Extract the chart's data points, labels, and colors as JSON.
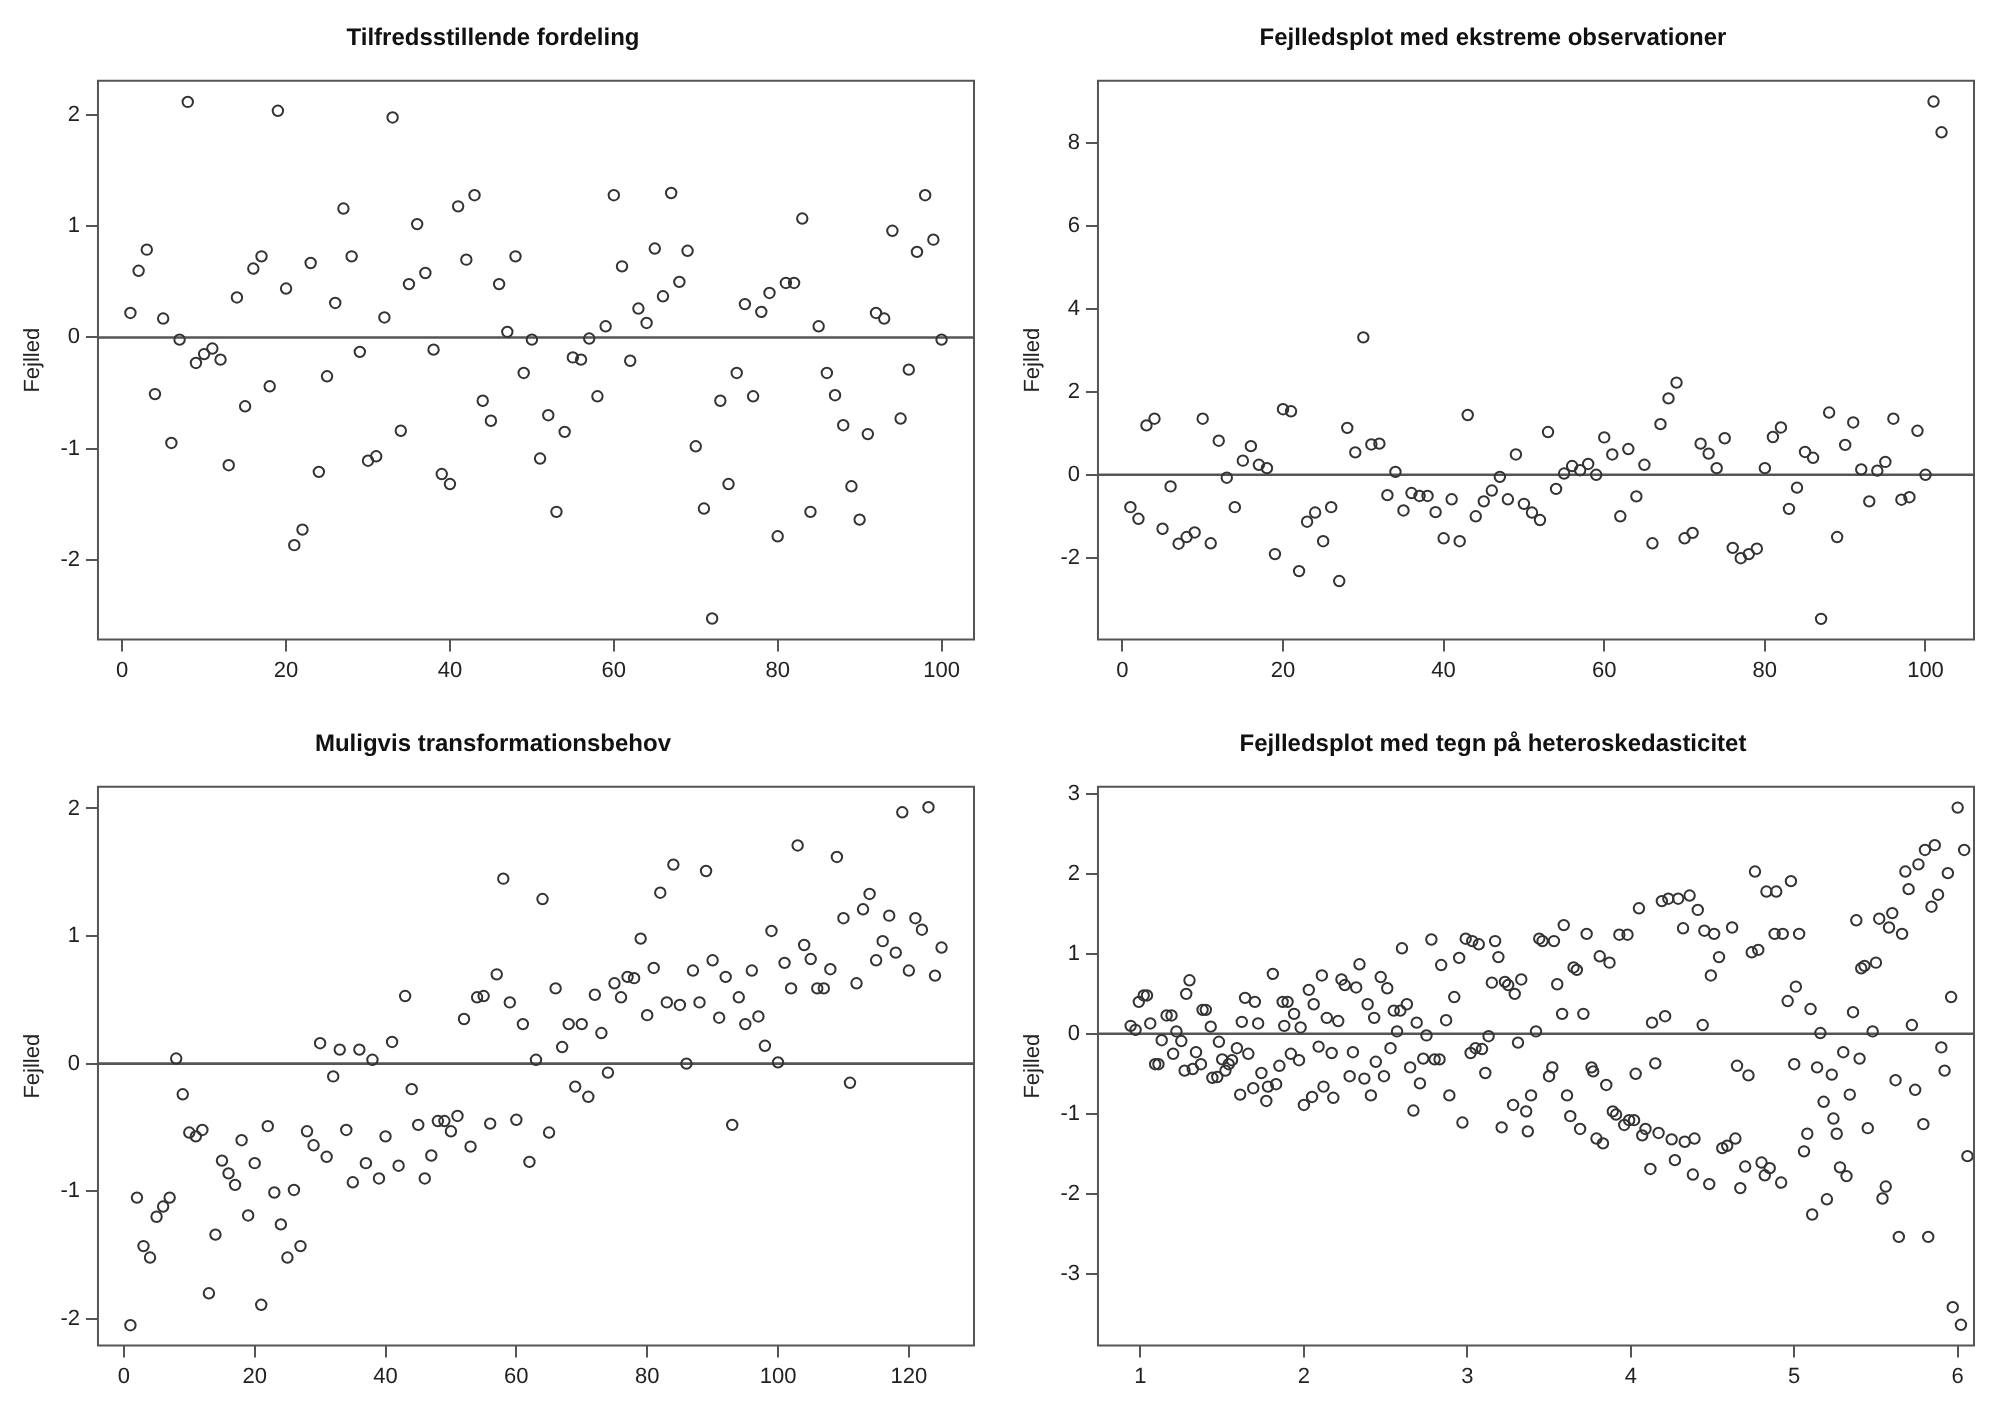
{
  "chart_data": [
    {
      "type": "scatter",
      "title": "Tilfredsstillende fordeling",
      "ylabel": "Fejlled",
      "marker": "circle",
      "x": [
        1,
        2,
        3,
        4,
        5,
        6,
        7,
        8,
        9,
        10,
        11,
        12,
        13,
        14,
        15,
        16,
        17,
        18,
        19,
        20,
        21,
        22,
        23,
        24,
        25,
        26,
        27,
        28,
        29,
        30,
        31,
        32,
        33,
        34,
        35,
        36,
        37,
        38,
        39,
        40,
        41,
        42,
        43,
        44,
        45,
        46,
        47,
        48,
        49,
        50,
        51,
        52,
        53,
        54,
        55,
        56,
        57,
        58,
        59,
        60,
        61,
        62,
        63,
        64,
        65,
        66,
        67,
        68,
        69,
        70,
        71,
        72,
        73,
        74,
        75,
        76,
        77,
        78,
        79,
        80,
        81,
        82,
        83,
        84,
        85,
        86,
        87,
        88,
        89,
        90,
        91,
        92,
        93,
        94,
        95,
        96,
        97,
        98,
        99,
        100
      ],
      "series": [
        {
          "color": "#333333",
          "values": [
            0.22,
            0.6,
            0.79,
            -0.51,
            0.17,
            -0.95,
            -0.02,
            2.12,
            -0.23,
            -0.15,
            -0.1,
            -0.2,
            -1.15,
            0.36,
            -0.62,
            0.62,
            0.73,
            -0.44,
            2.04,
            0.44,
            -1.87,
            -1.73,
            0.67,
            -1.21,
            -0.35,
            0.31,
            1.16,
            0.73,
            -0.13,
            -1.11,
            -1.07,
            0.18,
            1.98,
            -0.84,
            0.48,
            1.02,
            0.58,
            -0.11,
            -1.23,
            -1.32,
            1.18,
            0.7,
            1.28,
            -0.57,
            -0.75,
            0.48,
            0.05,
            0.73,
            -0.32,
            -0.02,
            -1.09,
            -0.7,
            -1.57,
            -0.85,
            -0.18,
            -0.2,
            -0.01,
            -0.53,
            0.1,
            1.28,
            0.64,
            -0.21,
            0.26,
            0.13,
            0.8,
            0.37,
            1.3,
            0.5,
            0.78,
            -0.98,
            -1.54,
            -2.53,
            -0.57,
            -1.32,
            -0.32,
            0.3,
            -0.53,
            0.23,
            0.4,
            -1.79,
            0.49,
            0.49,
            1.07,
            -1.57,
            0.1,
            -0.32,
            -0.52,
            -0.79,
            -1.34,
            -1.64,
            -0.87,
            0.22,
            0.17,
            0.96,
            -0.73,
            -0.29,
            0.77,
            1.28,
            0.88,
            -0.02
          ]
        }
      ],
      "xlim": [
        -2.96,
        103.96
      ],
      "ylim": [
        -2.72,
        2.31
      ],
      "xticks": [
        0,
        20,
        40,
        60,
        80,
        100
      ],
      "yticks": [
        -2,
        -1,
        0,
        1,
        2
      ],
      "ref_lines": [
        {
          "axis": "y",
          "value": 0,
          "color": "#555555"
        }
      ]
    },
    {
      "type": "scatter",
      "title": "Fejlledsplot med ekstreme observationer",
      "ylabel": "Fejlled",
      "marker": "circle",
      "x": [
        1,
        2,
        3,
        4,
        5,
        6,
        7,
        8,
        9,
        10,
        11,
        12,
        13,
        14,
        15,
        16,
        17,
        18,
        19,
        20,
        21,
        22,
        23,
        24,
        25,
        26,
        27,
        28,
        29,
        30,
        31,
        32,
        33,
        34,
        35,
        36,
        37,
        38,
        39,
        40,
        41,
        42,
        43,
        44,
        45,
        46,
        47,
        48,
        49,
        50,
        51,
        52,
        53,
        54,
        55,
        56,
        57,
        58,
        59,
        60,
        61,
        62,
        63,
        64,
        65,
        66,
        67,
        68,
        69,
        70,
        71,
        72,
        73,
        74,
        75,
        76,
        77,
        78,
        79,
        80,
        81,
        82,
        83,
        84,
        85,
        86,
        87,
        88,
        89,
        90,
        91,
        92,
        93,
        94,
        95,
        96,
        97,
        98,
        99,
        100,
        101,
        102
      ],
      "series": [
        {
          "color": "#333333",
          "values": [
            -0.78,
            -1.06,
            1.19,
            1.35,
            -1.3,
            -0.28,
            -1.66,
            -1.5,
            -1.39,
            1.35,
            -1.65,
            0.82,
            -0.07,
            -0.78,
            0.34,
            0.69,
            0.24,
            0.16,
            -1.91,
            1.58,
            1.53,
            -2.32,
            -1.13,
            -0.91,
            -1.6,
            -0.78,
            -2.56,
            1.13,
            0.54,
            3.31,
            0.73,
            0.75,
            -0.49,
            0.07,
            -0.86,
            -0.44,
            -0.51,
            -0.51,
            -0.9,
            -1.53,
            -0.59,
            -1.6,
            1.44,
            -1.0,
            -0.64,
            -0.38,
            -0.05,
            -0.59,
            0.49,
            -0.7,
            -0.91,
            -1.09,
            1.03,
            -0.34,
            0.03,
            0.21,
            0.11,
            0.26,
            0.0,
            0.9,
            0.49,
            -1.0,
            0.62,
            -0.52,
            0.24,
            -1.65,
            1.22,
            1.84,
            2.22,
            -1.53,
            -1.4,
            0.75,
            0.51,
            0.16,
            0.88,
            -1.76,
            -2.01,
            -1.91,
            -1.78,
            0.16,
            0.91,
            1.14,
            -0.82,
            -0.31,
            0.55,
            0.41,
            -3.47,
            1.5,
            -1.5,
            0.72,
            1.26,
            0.13,
            -0.64,
            0.1,
            0.31,
            1.35,
            -0.6,
            -0.54,
            1.06,
            0.0,
            8.99,
            8.25
          ]
        }
      ],
      "xlim": [
        -3.04,
        106.04
      ],
      "ylim": [
        -3.97,
        9.49
      ],
      "xticks": [
        0,
        20,
        40,
        60,
        80,
        100
      ],
      "yticks": [
        -2,
        0,
        2,
        4,
        6,
        8
      ],
      "ref_lines": [
        {
          "axis": "y",
          "value": 0,
          "color": "#555555"
        }
      ]
    },
    {
      "type": "scatter",
      "title": "Muligvis transformationsbehov",
      "ylabel": "Fejlled",
      "marker": "circle",
      "x": [
        1,
        2,
        3,
        4,
        5,
        6,
        7,
        8,
        9,
        10,
        11,
        12,
        13,
        14,
        15,
        16,
        17,
        18,
        19,
        20,
        21,
        22,
        23,
        24,
        25,
        26,
        27,
        28,
        29,
        30,
        31,
        32,
        33,
        34,
        35,
        36,
        37,
        38,
        39,
        40,
        41,
        42,
        43,
        44,
        45,
        46,
        47,
        48,
        49,
        50,
        51,
        52,
        53,
        54,
        55,
        56,
        57,
        58,
        59,
        60,
        61,
        62,
        63,
        64,
        65,
        66,
        67,
        68,
        69,
        70,
        71,
        72,
        73,
        74,
        75,
        76,
        77,
        78,
        79,
        80,
        81,
        82,
        83,
        84,
        85,
        86,
        87,
        88,
        89,
        90,
        91,
        92,
        93,
        94,
        95,
        96,
        97,
        98,
        99,
        100,
        101,
        102,
        103,
        104,
        105,
        106,
        107,
        108,
        109,
        110,
        111,
        112,
        113,
        114,
        115,
        116,
        117,
        118,
        119,
        120,
        121,
        122,
        123,
        124,
        125
      ],
      "series": [
        {
          "color": "#333333",
          "values": [
            -2.05,
            -1.05,
            -1.43,
            -1.52,
            -1.2,
            -1.12,
            -1.05,
            0.04,
            -0.24,
            -0.54,
            -0.57,
            -0.52,
            -1.8,
            -1.34,
            -0.76,
            -0.86,
            -0.95,
            -0.6,
            -1.19,
            -0.78,
            -1.89,
            -0.49,
            -1.01,
            -1.26,
            -1.52,
            -0.99,
            -1.43,
            -0.53,
            -0.64,
            0.16,
            -0.73,
            -0.1,
            0.11,
            -0.52,
            -0.93,
            0.11,
            -0.78,
            0.03,
            -0.9,
            -0.57,
            0.17,
            -0.8,
            0.53,
            -0.2,
            -0.48,
            -0.9,
            -0.72,
            -0.45,
            -0.45,
            -0.53,
            -0.41,
            0.35,
            -0.65,
            0.52,
            0.53,
            -0.47,
            0.7,
            1.45,
            0.48,
            -0.44,
            0.31,
            -0.77,
            0.03,
            1.29,
            -0.54,
            0.59,
            0.13,
            0.31,
            -0.18,
            0.31,
            -0.26,
            0.54,
            0.24,
            -0.07,
            0.63,
            0.52,
            0.68,
            0.67,
            0.98,
            0.38,
            0.75,
            1.34,
            0.48,
            1.56,
            0.46,
            0.0,
            0.73,
            0.48,
            1.51,
            0.81,
            0.36,
            0.68,
            -0.48,
            0.52,
            0.31,
            0.73,
            0.37,
            0.14,
            1.04,
            0.01,
            0.79,
            0.59,
            1.71,
            0.93,
            0.82,
            0.59,
            0.59,
            0.74,
            1.62,
            1.14,
            -0.15,
            0.63,
            1.21,
            1.33,
            0.81,
            0.96,
            1.16,
            0.87,
            1.97,
            0.73,
            1.14,
            1.05,
            2.01,
            0.69,
            0.91
          ]
        }
      ],
      "xlim": [
        -3.96,
        129.96
      ],
      "ylim": [
        -2.21,
        2.17
      ],
      "xticks": [
        0,
        20,
        40,
        60,
        80,
        100,
        120
      ],
      "yticks": [
        -2,
        -1,
        0,
        1,
        2
      ],
      "ref_lines": [
        {
          "axis": "y",
          "value": 0,
          "color": "#555555"
        }
      ]
    },
    {
      "type": "scatter",
      "title": "Fejlledsplot med tegn på heteroskedasticitet",
      "ylabel": "Fejlled",
      "marker": "circle",
      "x": [
        0.94,
        0.97,
        0.99,
        1.02,
        1.04,
        1.06,
        1.09,
        1.11,
        1.13,
        1.16,
        1.19,
        1.2,
        1.22,
        1.25,
        1.27,
        1.28,
        1.3,
        1.32,
        1.34,
        1.37,
        1.38,
        1.4,
        1.43,
        1.44,
        1.47,
        1.48,
        1.5,
        1.52,
        1.54,
        1.56,
        1.59,
        1.61,
        1.62,
        1.64,
        1.66,
        1.69,
        1.7,
        1.72,
        1.74,
        1.77,
        1.78,
        1.81,
        1.83,
        1.85,
        1.87,
        1.88,
        1.9,
        1.92,
        1.94,
        1.97,
        1.98,
        2.0,
        2.03,
        2.05,
        2.06,
        2.09,
        2.11,
        2.12,
        2.14,
        2.17,
        2.18,
        2.21,
        2.23,
        2.25,
        2.28,
        2.3,
        2.32,
        2.34,
        2.37,
        2.39,
        2.41,
        2.43,
        2.44,
        2.47,
        2.49,
        2.51,
        2.53,
        2.55,
        2.57,
        2.59,
        2.6,
        2.63,
        2.65,
        2.67,
        2.69,
        2.71,
        2.73,
        2.75,
        2.78,
        2.8,
        2.83,
        2.84,
        2.87,
        2.89,
        2.92,
        2.95,
        2.97,
        2.99,
        3.02,
        3.03,
        3.05,
        3.07,
        3.09,
        3.11,
        3.13,
        3.15,
        3.17,
        3.19,
        3.21,
        3.23,
        3.25,
        3.28,
        3.29,
        3.31,
        3.33,
        3.36,
        3.37,
        3.39,
        3.42,
        3.44,
        3.46,
        3.5,
        3.52,
        3.53,
        3.55,
        3.58,
        3.59,
        3.61,
        3.63,
        3.65,
        3.67,
        3.69,
        3.71,
        3.73,
        3.76,
        3.77,
        3.79,
        3.81,
        3.83,
        3.85,
        3.87,
        3.89,
        3.91,
        3.93,
        3.96,
        3.98,
        3.99,
        4.02,
        4.03,
        4.05,
        4.07,
        4.09,
        4.12,
        4.13,
        4.15,
        4.17,
        4.19,
        4.21,
        4.23,
        4.25,
        4.27,
        4.29,
        4.32,
        4.33,
        4.36,
        4.38,
        4.39,
        4.41,
        4.44,
        4.45,
        4.48,
        4.49,
        4.51,
        4.54,
        4.56,
        4.59,
        4.62,
        4.64,
        4.65,
        4.67,
        4.7,
        4.72,
        4.74,
        4.76,
        4.78,
        4.8,
        4.82,
        4.83,
        4.85,
        4.88,
        4.89,
        4.92,
        4.93,
        4.96,
        4.98,
        5.0,
        5.01,
        5.03,
        5.06,
        5.08,
        5.1,
        5.11,
        5.14,
        5.16,
        5.18,
        5.2,
        5.23,
        5.24,
        5.26,
        5.28,
        5.3,
        5.32,
        5.34,
        5.36,
        5.38,
        5.4,
        5.41,
        5.43,
        5.45,
        5.48,
        5.5,
        5.52,
        5.54,
        5.56,
        5.58,
        5.6,
        5.62,
        5.64,
        5.66,
        5.68,
        5.7,
        5.72,
        5.74,
        5.76,
        5.79,
        5.8,
        5.82,
        5.84,
        5.86,
        5.88,
        5.9,
        5.92,
        5.94,
        5.96,
        5.97,
        6.0,
        6.02,
        6.04,
        6.06
      ],
      "series": [
        {
          "color": "#333333",
          "values": [
            0.1,
            0.05,
            0.4,
            0.48,
            0.48,
            0.13,
            -0.38,
            -0.38,
            -0.08,
            0.23,
            0.23,
            -0.25,
            0.03,
            -0.09,
            -0.46,
            0.5,
            0.67,
            -0.44,
            -0.23,
            -0.38,
            0.3,
            0.3,
            0.09,
            -0.55,
            -0.54,
            -0.1,
            -0.32,
            -0.46,
            -0.38,
            -0.33,
            -0.18,
            -0.76,
            0.15,
            0.45,
            -0.25,
            -0.68,
            0.4,
            0.13,
            -0.49,
            -0.84,
            -0.66,
            0.75,
            -0.63,
            -0.4,
            0.4,
            0.1,
            0.4,
            -0.25,
            0.25,
            -0.33,
            0.08,
            -0.89,
            0.55,
            -0.79,
            0.37,
            -0.16,
            0.73,
            -0.66,
            0.2,
            -0.24,
            -0.8,
            0.16,
            0.68,
            0.61,
            -0.53,
            -0.23,
            0.58,
            0.87,
            -0.56,
            0.37,
            -0.77,
            0.2,
            -0.35,
            0.71,
            -0.53,
            0.57,
            -0.18,
            0.29,
            0.03,
            0.29,
            1.07,
            0.37,
            -0.42,
            -0.96,
            0.14,
            -0.62,
            -0.31,
            -0.02,
            1.18,
            -0.32,
            -0.32,
            0.86,
            0.17,
            -0.77,
            0.46,
            0.95,
            -1.11,
            1.19,
            -0.24,
            1.16,
            -0.18,
            1.12,
            -0.19,
            -0.49,
            -0.03,
            0.64,
            1.16,
            0.96,
            -1.17,
            0.65,
            0.61,
            -0.89,
            0.5,
            -0.11,
            0.68,
            -0.97,
            -1.22,
            -0.77,
            0.03,
            1.19,
            1.16,
            -0.53,
            -0.42,
            1.16,
            0.62,
            0.25,
            1.36,
            -0.77,
            -1.03,
            0.83,
            0.8,
            -1.19,
            0.25,
            1.25,
            -0.42,
            -0.47,
            -1.31,
            0.97,
            -1.37,
            -0.64,
            0.89,
            -0.97,
            -1.01,
            1.24,
            -1.14,
            1.24,
            -1.08,
            -1.08,
            -0.5,
            1.57,
            -1.27,
            -1.19,
            -1.69,
            0.14,
            -0.37,
            -1.24,
            1.66,
            0.22,
            1.69,
            -1.32,
            -1.58,
            1.69,
            1.32,
            -1.35,
            1.73,
            -1.76,
            -1.31,
            1.55,
            0.11,
            1.29,
            -1.88,
            0.73,
            1.25,
            0.96,
            -1.43,
            -1.4,
            1.33,
            -1.31,
            -0.4,
            -1.93,
            -1.66,
            -0.52,
            1.02,
            2.03,
            1.05,
            -1.61,
            -1.77,
            1.78,
            -1.68,
            1.25,
            1.78,
            -1.86,
            1.25,
            0.41,
            1.91,
            -0.38,
            0.59,
            1.25,
            -1.47,
            -1.25,
            0.31,
            -2.26,
            -0.42,
            0.01,
            -0.85,
            -2.07,
            -0.51,
            -1.06,
            -1.25,
            -1.67,
            -0.23,
            -1.78,
            -0.76,
            0.27,
            1.42,
            -0.31,
            0.82,
            0.85,
            -1.18,
            0.03,
            0.89,
            1.44,
            -2.06,
            -1.91,
            1.33,
            1.51,
            -0.58,
            -2.54,
            1.25,
            2.03,
            1.81,
            0.11,
            -0.7,
            2.12,
            -1.13,
            2.3,
            -2.54,
            1.59,
            2.36,
            1.74,
            -0.17,
            -0.46,
            2.01,
            0.46,
            -3.42,
            2.83,
            -3.64,
            2.3,
            -1.53
          ]
        }
      ],
      "xlim": [
        0.74,
        6.1
      ],
      "ylim": [
        -3.9,
        3.09
      ],
      "xticks": [
        1,
        2,
        3,
        4,
        5,
        6
      ],
      "yticks": [
        -3,
        -2,
        -1,
        0,
        1,
        2,
        3
      ],
      "ref_lines": [
        {
          "axis": "y",
          "value": 0,
          "color": "#555555"
        }
      ]
    }
  ]
}
